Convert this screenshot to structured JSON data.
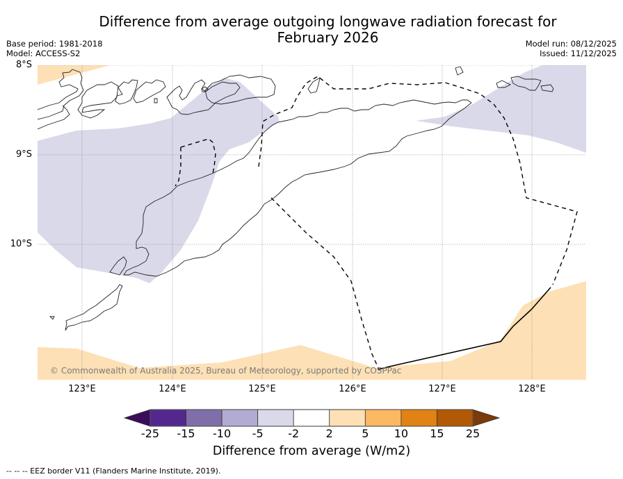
{
  "header": {
    "title_line1": "Difference from average outgoing longwave radiation forecast for",
    "title_line2": "February 2026",
    "base_period": "Base period: 1981-2018",
    "model": "Model: ACCESS-S2",
    "model_run": "Model run: 08/12/2025",
    "issued": "Issued: 11/12/2025"
  },
  "map": {
    "lat_labels": [
      "8°S",
      "9°S",
      "10°S"
    ],
    "lon_labels": [
      "123°E",
      "124°E",
      "125°E",
      "126°E",
      "127°E",
      "128°E"
    ],
    "extent": {
      "lon_min": 122.5,
      "lon_max": 128.6,
      "lat_min": -11.5,
      "lat_max": -8.0
    },
    "copyright": "© Commonwealth of Australia 2025, Bureau of Meteorology, supported by COSPPac",
    "regions": [
      {
        "name": "negative-anomaly-west",
        "category": "-5 to -2",
        "color": "#d9d9ea"
      },
      {
        "name": "negative-anomaly-northeast",
        "category": "-5 to -2",
        "color": "#d9d9ea"
      },
      {
        "name": "positive-anomaly-northwest",
        "category": "2 to 5",
        "color": "#fde0b5"
      },
      {
        "name": "positive-anomaly-south",
        "category": "2 to 5",
        "color": "#fde0b5"
      }
    ]
  },
  "colorbar": {
    "label": "Difference from average (W/m2)",
    "ticks": [
      "-25",
      "-15",
      "-10",
      "-5",
      "-2",
      "2",
      "5",
      "10",
      "15",
      "25"
    ],
    "under_color": "#3b0c5a",
    "over_color": "#7b3a0a",
    "colors": [
      "#54278f",
      "#7f6ea8",
      "#b2acd2",
      "#d9d9ea",
      "#ffffff",
      "#fde0b5",
      "#fdb863",
      "#e08214",
      "#b35806"
    ]
  },
  "footer": {
    "eez_note": "--  --  -- EEZ border V11 (Flanders Marine Institute, 2019)."
  }
}
